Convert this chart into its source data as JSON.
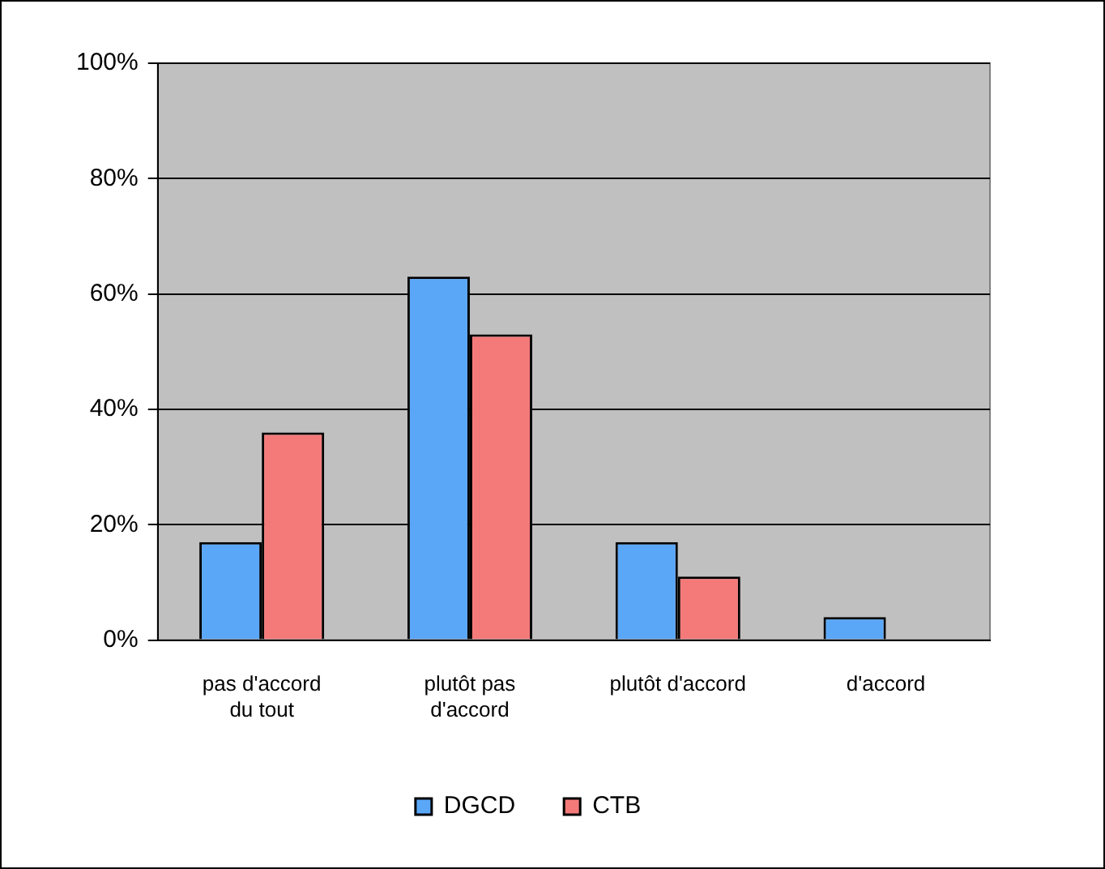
{
  "chart_data": {
    "type": "bar",
    "categories": [
      "pas d'accord\ndu tout",
      "plutôt pas\nd'accord",
      "plutôt d'accord",
      "d'accord"
    ],
    "series": [
      {
        "name": "DGCD",
        "color": "#5ba7f7",
        "values": [
          17,
          63,
          17,
          4
        ]
      },
      {
        "name": "CTB",
        "color": "#f47a7a",
        "values": [
          36,
          53,
          11,
          0
        ]
      }
    ],
    "ylim": [
      0,
      100
    ],
    "yticks": [
      {
        "value": 0,
        "label": "0%"
      },
      {
        "value": 20,
        "label": "20%"
      },
      {
        "value": 40,
        "label": "40%"
      },
      {
        "value": 60,
        "label": "60%"
      },
      {
        "value": 80,
        "label": "80%"
      },
      {
        "value": 100,
        "label": "100%"
      }
    ],
    "grid": "y",
    "legend": "bottom"
  }
}
